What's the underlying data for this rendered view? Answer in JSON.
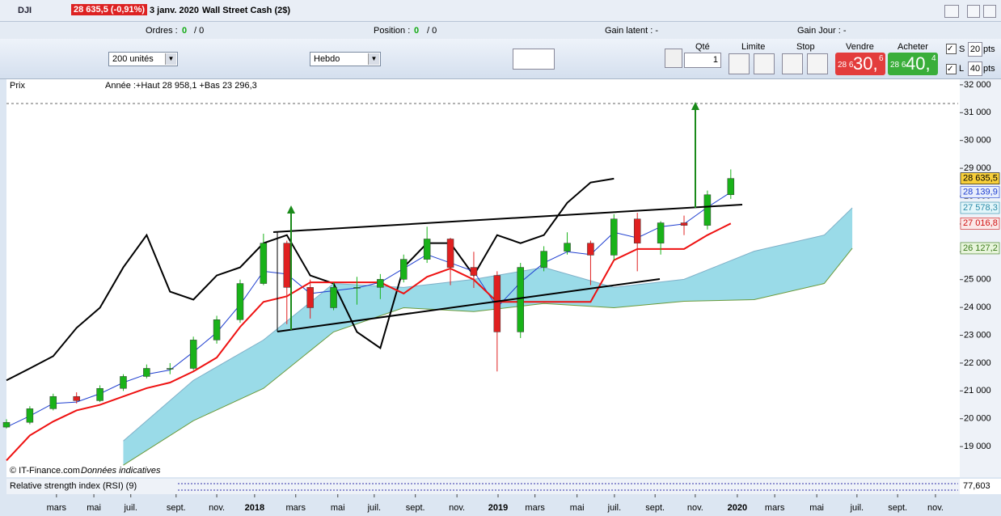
{
  "window": {
    "symbol": "DJI",
    "quote": "28 635,5 (-0,91%)",
    "date": "3 janv. 2020",
    "instrument": "Wall Street Cash (2$)"
  },
  "status": {
    "orders_label": "Ordres :",
    "orders_a": "0",
    "orders_b": "/ 0",
    "position_label": "Position :",
    "position_a": "0",
    "position_b": "/ 0",
    "gain_latent": "Gain latent : -",
    "gain_jour": "Gain Jour : -"
  },
  "toolbar": {
    "units": "200 unités",
    "period": "Hebdo",
    "qty_label": "Qté",
    "qty": "1",
    "limit": "Limite",
    "stop": "Stop",
    "sell": "Vendre",
    "sell_small": "28 6",
    "sell_big": "30,",
    "sell_sup": "6",
    "buy": "Acheter",
    "buy_small": "28 6",
    "buy_big": "40,",
    "buy_sup": "4",
    "s": "S",
    "s_pts": "20",
    "l": "L",
    "l_pts": "40",
    "pts": "pts"
  },
  "panel": {
    "label": "Prix",
    "info": "Année :+Haut 28 958,1 +Bas 23 296,3",
    "copyright": "© IT-Finance.com",
    "disclaimer": "Données indicatives",
    "rsi_label": "Relative strength index (RSI) (9)",
    "rsi_value": "77,603"
  },
  "chart_data": {
    "type": "candlestick",
    "x": [
      0,
      5,
      10,
      15,
      20,
      25,
      30,
      35,
      40,
      45,
      50,
      55,
      60,
      65,
      70,
      75,
      80,
      85,
      90,
      95,
      100,
      105,
      110,
      115,
      120,
      125,
      130,
      135,
      140,
      145,
      150,
      155
    ],
    "open": [
      19700,
      19870,
      20360,
      20800,
      20650,
      21090,
      21520,
      21810,
      21810,
      22830,
      23560,
      24860,
      26310,
      24720,
      23990,
      24720,
      24720,
      25010,
      25730,
      26460,
      25440,
      25150,
      23120,
      25440,
      26020,
      26310,
      25880,
      27180,
      26310,
      27040,
      26950,
      28050
    ],
    "high": [
      19980,
      20450,
      20900,
      20950,
      21200,
      21600,
      21950,
      22000,
      22950,
      23700,
      25000,
      26650,
      26400,
      25000,
      24900,
      25100,
      25200,
      25900,
      26900,
      26500,
      26000,
      25300,
      25600,
      26200,
      26700,
      26400,
      27350,
      27400,
      27100,
      27300,
      28200,
      28960
    ],
    "low": [
      19650,
      19800,
      20300,
      20550,
      20600,
      21000,
      21450,
      21600,
      21750,
      22700,
      23450,
      24800,
      23400,
      23600,
      23900,
      24100,
      24300,
      24900,
      25600,
      24800,
      24700,
      21700,
      22900,
      25300,
      25900,
      24800,
      25700,
      25300,
      25900,
      26600,
      26800,
      27900
    ],
    "close": [
      19870,
      20360,
      20800,
      20650,
      21090,
      21520,
      21810,
      21810,
      22830,
      23560,
      24860,
      26310,
      24720,
      23990,
      24720,
      24720,
      25010,
      25730,
      26460,
      25440,
      25150,
      23120,
      25440,
      26020,
      26310,
      25880,
      27180,
      26310,
      27040,
      26950,
      28050,
      28635.5
    ],
    "up_color": "#19b219",
    "down_color": "#e02020",
    "series": [
      {
        "color": "#000000",
        "width": 2,
        "values": [
          21380,
          21810,
          22250,
          23265,
          23990,
          25440,
          26600,
          24570,
          24280,
          25150,
          25440,
          26310,
          26600,
          25150,
          24860,
          23120,
          22540,
          25440,
          26310,
          26310,
          25150,
          26600,
          26310,
          26600,
          27760,
          28490,
          28630,
          null,
          null,
          null,
          null,
          null
        ]
      },
      {
        "color": "#1f3fd0",
        "width": 1,
        "values": [
          19700,
          20100,
          20550,
          20600,
          20900,
          21300,
          21600,
          21750,
          22400,
          23100,
          24100,
          25300,
          25200,
          24500,
          24600,
          24700,
          24900,
          25400,
          25900,
          25600,
          25300,
          24000,
          24900,
          25600,
          26000,
          25900,
          26700,
          26500,
          26900,
          27000,
          27600,
          28139.9
        ]
      },
      {
        "color": "#ee1111",
        "width": 2,
        "values": [
          18500,
          19400,
          19900,
          20300,
          20500,
          20800,
          21100,
          21300,
          21700,
          22200,
          23300,
          24200,
          24400,
          24900,
          24900,
          24900,
          24900,
          24500,
          25100,
          25400,
          25000,
          24200,
          24200,
          24200,
          24200,
          24200,
          25700,
          26100,
          26100,
          26100,
          26600,
          27016.8
        ]
      }
    ],
    "cloud": {
      "x": [
        25,
        40,
        55,
        70,
        85,
        100,
        115,
        130,
        145,
        160,
        175,
        181
      ],
      "upper": [
        19200,
        21380,
        22830,
        24860,
        24720,
        25010,
        25440,
        24720,
        25010,
        26020,
        26600,
        27578.3
      ],
      "lower": [
        18330,
        19930,
        21090,
        23120,
        23990,
        23850,
        24140,
        23990,
        24220,
        24280,
        24860,
        26127.2
      ],
      "color": "#9adbe8",
      "upper_color": "#7fb0c8",
      "lower_color": "#6a9a3a"
    },
    "price_tags": [
      {
        "value": 28635.5,
        "label": "28 635,5",
        "color": "#000000",
        "fill": "#f7cf3a"
      },
      {
        "value": 28139.9,
        "label": "28 139,9",
        "color": "#1f3fd0",
        "fill": "#e8eefc"
      },
      {
        "value": 27578.3,
        "label": "27 578,3",
        "color": "#2a8aa8",
        "fill": "#e3f6fa"
      },
      {
        "value": 27016.8,
        "label": "27 016,8",
        "color": "#d01010",
        "fill": "#fbe8e8"
      },
      {
        "value": 26127.2,
        "label": "26 127,2",
        "color": "#3a7a1a",
        "fill": "#e8f5dc"
      }
    ],
    "xlim": [
      0,
      204
    ],
    "ylim": [
      17900,
      32200
    ],
    "yticks": [
      {
        "value": 19000,
        "label": "19 000"
      },
      {
        "value": 20000,
        "label": "20 000"
      },
      {
        "value": 21000,
        "label": "21 000"
      },
      {
        "value": 22000,
        "label": "22 000"
      },
      {
        "value": 23000,
        "label": "23 000"
      },
      {
        "value": 24000,
        "label": "24 000"
      },
      {
        "value": 25000,
        "label": "25 000"
      },
      {
        "value": 26000,
        "label": "26 000"
      },
      {
        "value": 27000,
        "label": "27 000"
      },
      {
        "value": 28000,
        "label": "28 000"
      },
      {
        "value": 29000,
        "label": "29 000"
      },
      {
        "value": 30000,
        "label": "30 000"
      },
      {
        "value": 31000,
        "label": "31 000"
      },
      {
        "value": 32000,
        "label": "32 000"
      }
    ],
    "xticks": [
      {
        "value": 10.7,
        "label": "mars"
      },
      {
        "value": 18.7,
        "label": "mai"
      },
      {
        "value": 26.6,
        "label": "juil."
      },
      {
        "value": 36.3,
        "label": "sept."
      },
      {
        "value": 45,
        "label": "nov."
      },
      {
        "value": 53.1,
        "label": "2018",
        "bold": true
      },
      {
        "value": 61.9,
        "label": "mars"
      },
      {
        "value": 70.9,
        "label": "mai"
      },
      {
        "value": 78.7,
        "label": "juil."
      },
      {
        "value": 87.5,
        "label": "sept."
      },
      {
        "value": 96.4,
        "label": "nov."
      },
      {
        "value": 105.2,
        "label": "2019",
        "bold": true
      },
      {
        "value": 113.1,
        "label": "mars"
      },
      {
        "value": 122.1,
        "label": "mai"
      },
      {
        "value": 130.1,
        "label": "juil."
      },
      {
        "value": 138.8,
        "label": "sept."
      },
      {
        "value": 147.4,
        "label": "nov."
      },
      {
        "value": 156.4,
        "label": "2020",
        "bold": true
      },
      {
        "value": 164.4,
        "label": "mars"
      },
      {
        "value": 173.4,
        "label": "mai"
      },
      {
        "value": 182,
        "label": "juil."
      },
      {
        "value": 190.7,
        "label": "sept."
      },
      {
        "value": 198.8,
        "label": "nov."
      }
    ]
  }
}
